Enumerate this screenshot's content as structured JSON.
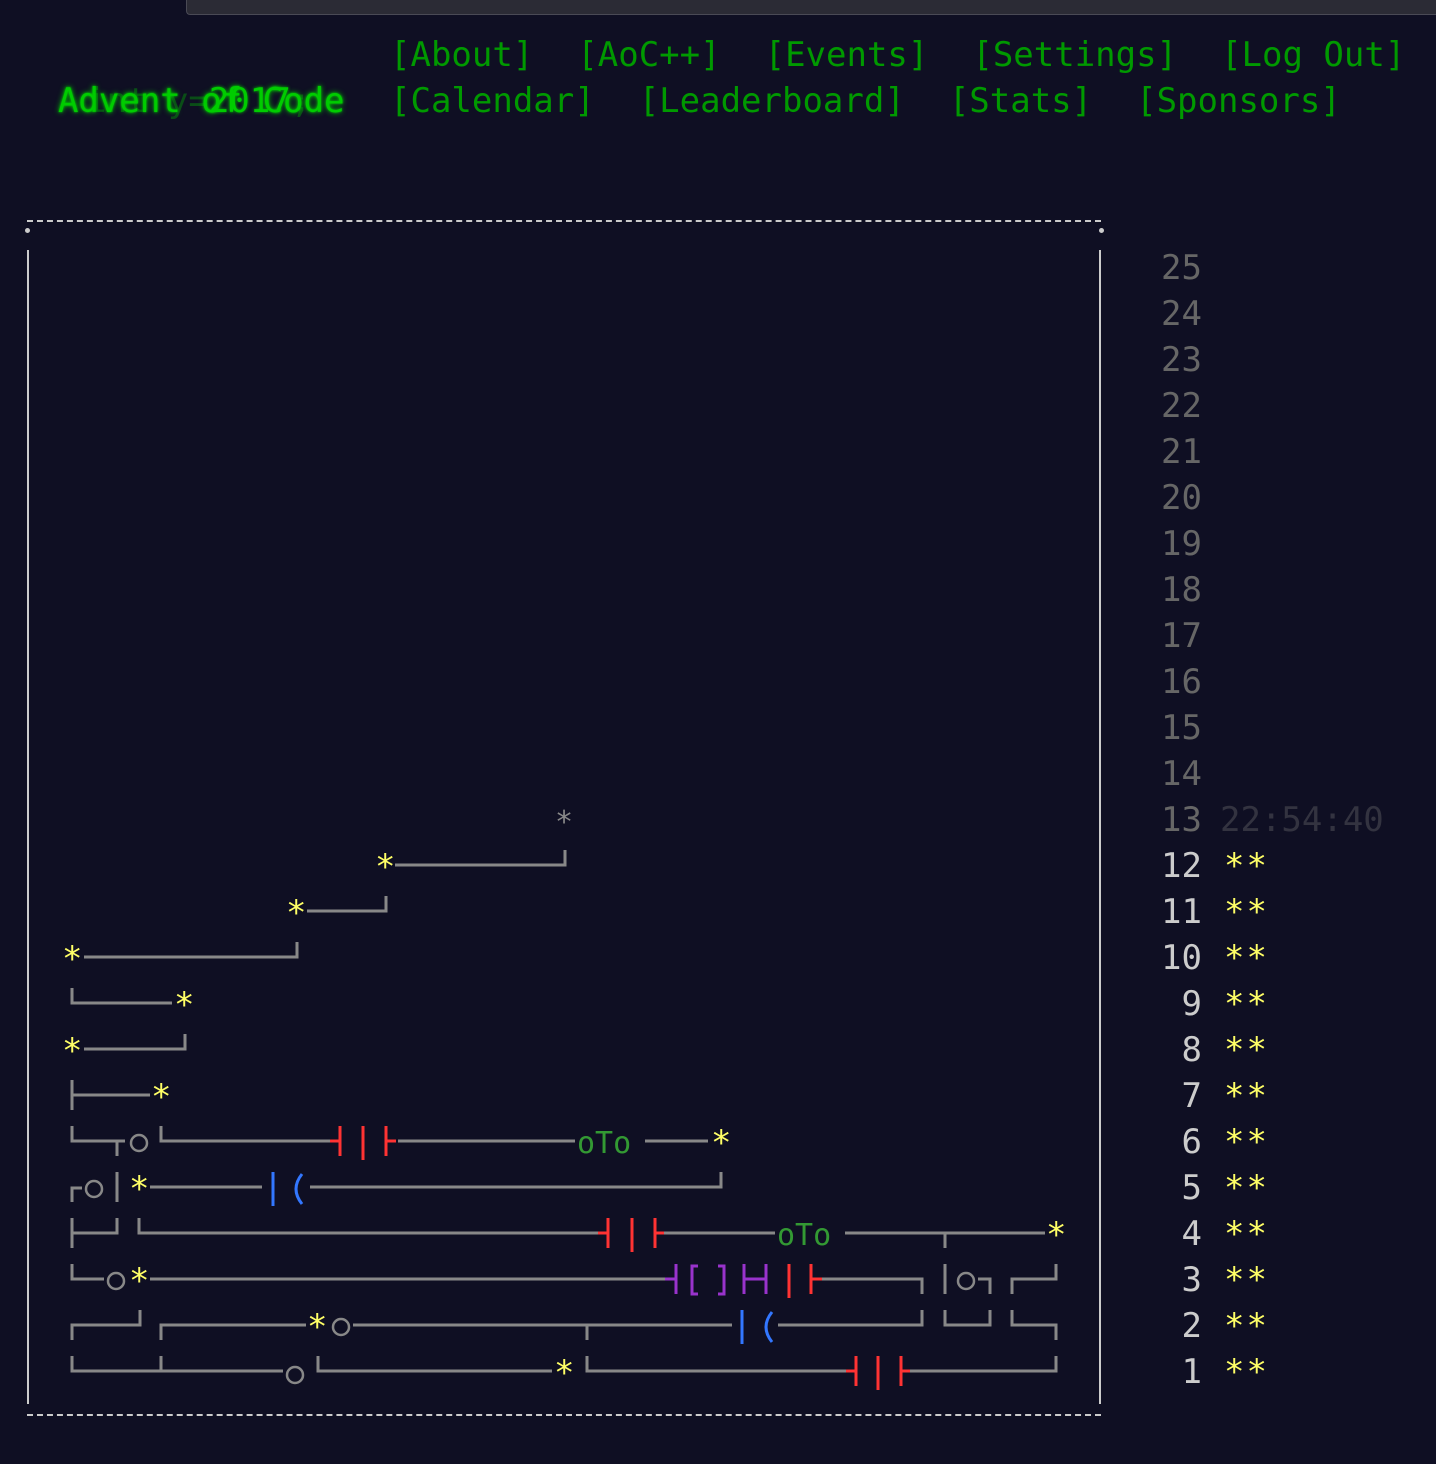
{
  "header": {
    "title": "Advent of Code",
    "year_prefix": "int y=",
    "year": "2017",
    "year_suffix": ";",
    "nav_row1": [
      "[About]",
      "[AoC++]",
      "[Events]",
      "[Settings]",
      "[Log Out]"
    ],
    "nav_row2": [
      "[Calendar]",
      "[Leaderboard]",
      "[Stats]",
      "[Sponsors]"
    ]
  },
  "calendar": {
    "star_glyph": "*",
    "circuit_labels": {
      "oto": "oTo",
      "bracket": "[]"
    },
    "days": [
      {
        "day": "25",
        "stars": "",
        "timer": ""
      },
      {
        "day": "24",
        "stars": "",
        "timer": ""
      },
      {
        "day": "23",
        "stars": "",
        "timer": ""
      },
      {
        "day": "22",
        "stars": "",
        "timer": ""
      },
      {
        "day": "21",
        "stars": "",
        "timer": ""
      },
      {
        "day": "20",
        "stars": "",
        "timer": ""
      },
      {
        "day": "19",
        "stars": "",
        "timer": ""
      },
      {
        "day": "18",
        "stars": "",
        "timer": ""
      },
      {
        "day": "17",
        "stars": "",
        "timer": ""
      },
      {
        "day": "16",
        "stars": "",
        "timer": ""
      },
      {
        "day": "15",
        "stars": "",
        "timer": ""
      },
      {
        "day": "14",
        "stars": "",
        "timer": ""
      },
      {
        "day": "13",
        "stars": "",
        "timer": "22:54:40"
      },
      {
        "day": "12",
        "stars": "**",
        "timer": ""
      },
      {
        "day": "11",
        "stars": "**",
        "timer": ""
      },
      {
        "day": "10",
        "stars": "**",
        "timer": ""
      },
      {
        "day": "9",
        "stars": "**",
        "timer": ""
      },
      {
        "day": "8",
        "stars": "**",
        "timer": ""
      },
      {
        "day": "7",
        "stars": "**",
        "timer": ""
      },
      {
        "day": "6",
        "stars": "**",
        "timer": ""
      },
      {
        "day": "5",
        "stars": "**",
        "timer": ""
      },
      {
        "day": "4",
        "stars": "**",
        "timer": ""
      },
      {
        "day": "3",
        "stars": "**",
        "timer": ""
      },
      {
        "day": "2",
        "stars": "**",
        "timer": ""
      },
      {
        "day": "1",
        "stars": "**",
        "timer": ""
      }
    ]
  },
  "colors": {
    "background": "#0f0f23",
    "title_green": "#00cc00",
    "nav_green": "#009900",
    "star_yellow": "#ffff66",
    "wire_gray": "#888888"
  }
}
